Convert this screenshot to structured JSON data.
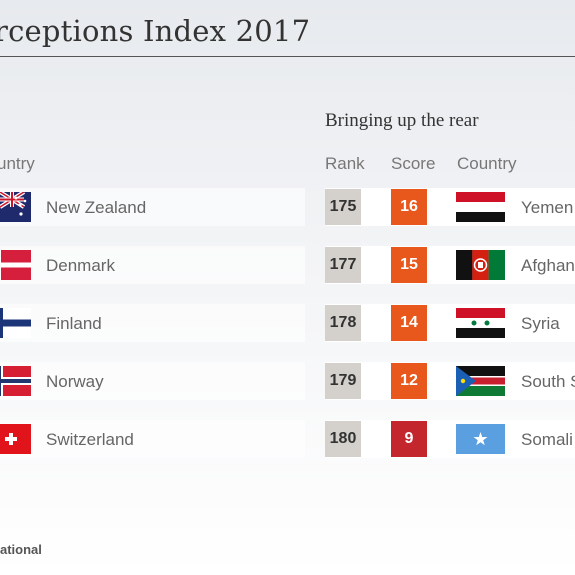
{
  "title": "rceptions Index 2017",
  "bottom_section": {
    "heading": "Bringing up the rear"
  },
  "columns": {
    "left_country": "untry",
    "rank": "Rank",
    "score": "Score",
    "country": "Country"
  },
  "top_countries": [
    {
      "name": "New Zealand",
      "flag_icon": "new-zealand-flag-icon"
    },
    {
      "name": "Denmark",
      "flag_icon": "denmark-flag-icon"
    },
    {
      "name": "Finland",
      "flag_icon": "finland-flag-icon"
    },
    {
      "name": "Norway",
      "flag_icon": "norway-flag-icon"
    },
    {
      "name": "Switzerland",
      "flag_icon": "switzerland-flag-icon"
    }
  ],
  "bottom_countries": [
    {
      "rank": "175",
      "score": "16",
      "name": "Yemen",
      "flag_icon": "yemen-flag-icon",
      "score_color": "#e8571c"
    },
    {
      "rank": "177",
      "score": "15",
      "name": "Afghan",
      "flag_icon": "afghanistan-flag-icon",
      "score_color": "#e8571c"
    },
    {
      "rank": "178",
      "score": "14",
      "name": "Syria",
      "flag_icon": "syria-flag-icon",
      "score_color": "#e8571c"
    },
    {
      "rank": "179",
      "score": "12",
      "name": "South S",
      "flag_icon": "south-sudan-flag-icon",
      "score_color": "#e8571c"
    },
    {
      "rank": "180",
      "score": "9",
      "name": "Somali",
      "flag_icon": "somalia-flag-icon",
      "score_color": "#c4262e"
    }
  ],
  "source": "ational",
  "colors": {
    "rank_box": "#d4d1cd",
    "score_orange": "#e8571c",
    "score_red": "#c4262e",
    "title_text": "#333333"
  }
}
